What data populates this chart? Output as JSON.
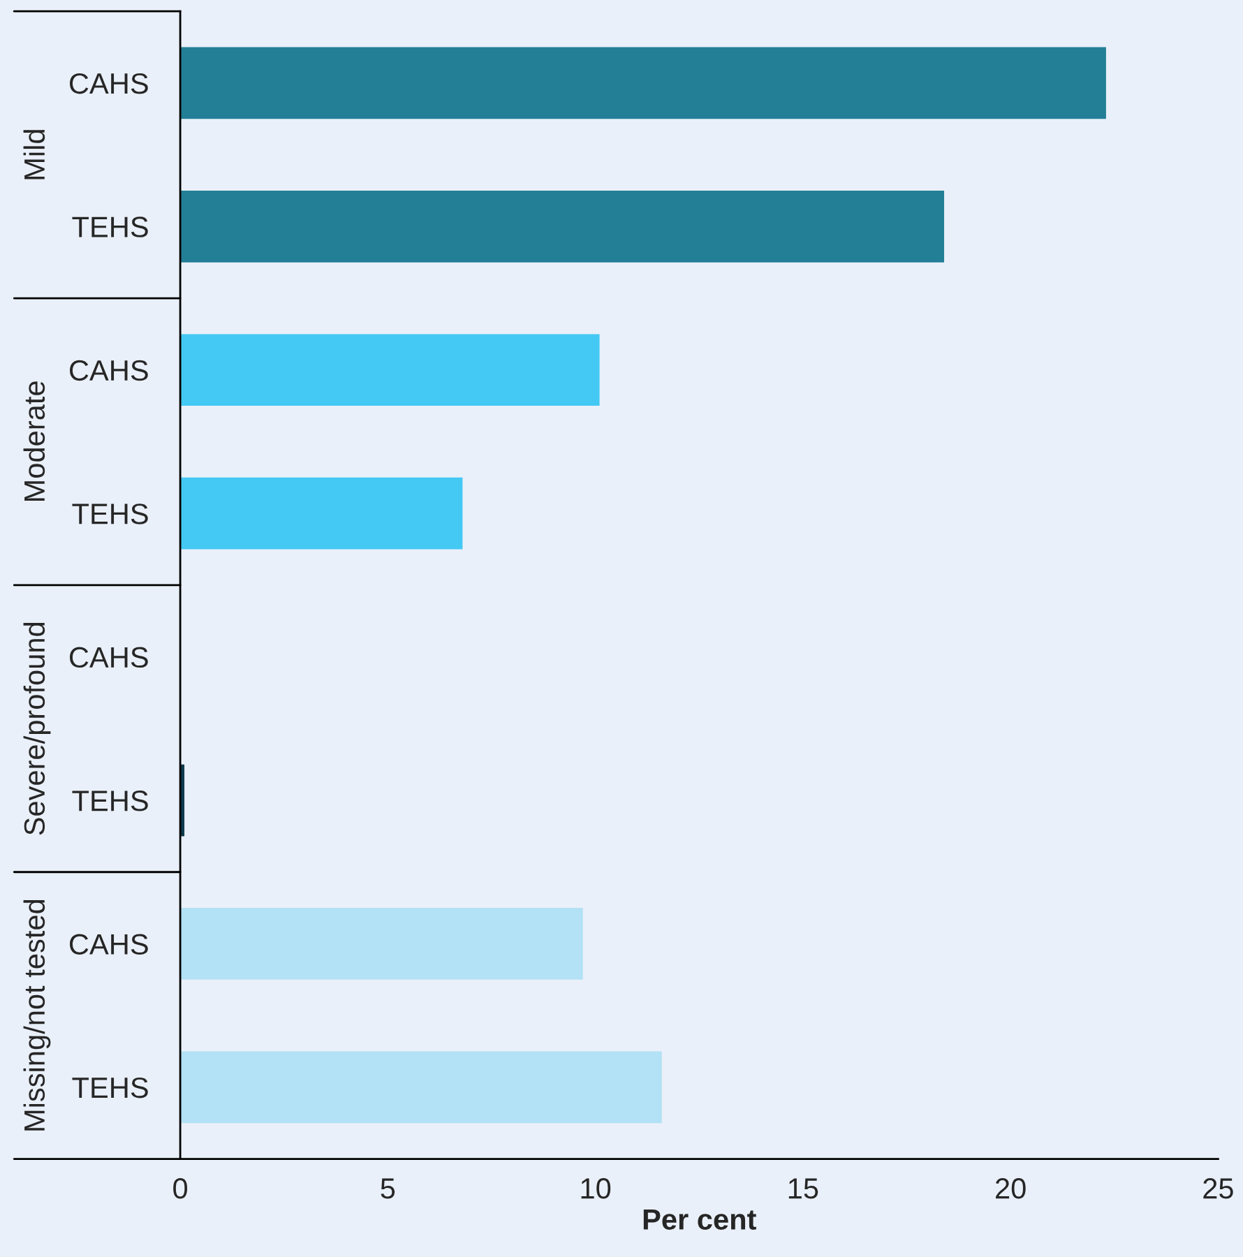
{
  "chart_data": {
    "type": "bar",
    "orientation": "horizontal",
    "categories": [
      "CAHS",
      "TEHS",
      "CAHS",
      "TEHS",
      "CAHS",
      "TEHS",
      "CAHS",
      "TEHS"
    ],
    "values": [
      22.3,
      18.4,
      10.1,
      6.8,
      0,
      0.1,
      9.7,
      11.6
    ],
    "colors": [
      "#237f96",
      "#237f96",
      "#44c8f4",
      "#44c8f4",
      "#0d3a4a",
      "#0d3a4a",
      "#b3e1f5",
      "#b3e1f5"
    ],
    "annotations": [
      "Mild",
      "Moderate",
      "Severe/profound",
      "Missing/not tested"
    ],
    "xlabel": "Per cent",
    "xlim": [
      0,
      25
    ],
    "xticks": [
      0,
      5,
      10,
      15,
      20,
      25
    ],
    "grid": false,
    "legend": false
  }
}
